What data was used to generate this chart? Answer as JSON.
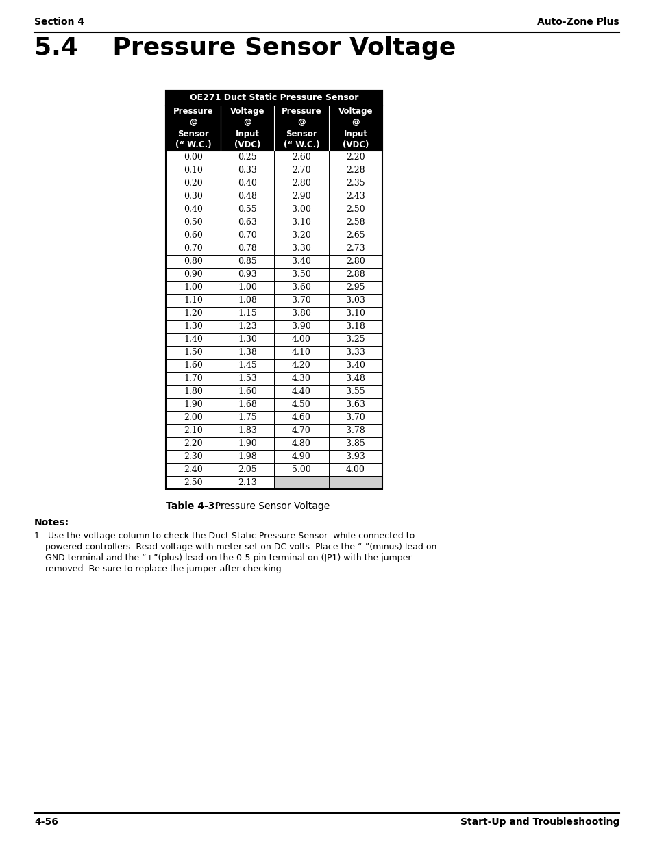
{
  "header_left": "Section 4",
  "header_right": "Auto-Zone Plus",
  "title": "5.4    Pressure Sensor Voltage",
  "table_title": "OE271 Duct Static Pressure Sensor",
  "col_headers": [
    "Pressure\n@\nSensor\n(“ W.C.)",
    "Voltage\n@\nInput\n(VDC)",
    "Pressure\n@\nSensor\n(“ W.C.)",
    "Voltage\n@\nInput\n(VDC)"
  ],
  "data_col1": [
    0.0,
    0.1,
    0.2,
    0.3,
    0.4,
    0.5,
    0.6,
    0.7,
    0.8,
    0.9,
    1.0,
    1.1,
    1.2,
    1.3,
    1.4,
    1.5,
    1.6,
    1.7,
    1.8,
    1.9,
    2.0,
    2.1,
    2.2,
    2.3,
    2.4,
    2.5
  ],
  "data_col2": [
    0.25,
    0.33,
    0.4,
    0.48,
    0.55,
    0.63,
    0.7,
    0.78,
    0.85,
    0.93,
    1.0,
    1.08,
    1.15,
    1.23,
    1.3,
    1.38,
    1.45,
    1.53,
    1.6,
    1.68,
    1.75,
    1.83,
    1.9,
    1.98,
    2.05,
    2.13
  ],
  "data_col3": [
    2.6,
    2.7,
    2.8,
    2.9,
    3.0,
    3.1,
    3.2,
    3.3,
    3.4,
    3.5,
    3.6,
    3.7,
    3.8,
    3.9,
    4.0,
    4.1,
    4.2,
    4.3,
    4.4,
    4.5,
    4.6,
    4.7,
    4.8,
    4.9,
    5.0,
    null
  ],
  "data_col4": [
    2.2,
    2.28,
    2.35,
    2.43,
    2.5,
    2.58,
    2.65,
    2.73,
    2.8,
    2.88,
    2.95,
    3.03,
    3.1,
    3.18,
    3.25,
    3.33,
    3.4,
    3.48,
    3.55,
    3.63,
    3.7,
    3.78,
    3.85,
    3.93,
    4.0,
    null
  ],
  "caption_bold": "Table 4-3:",
  "caption_normal": "  Pressure Sensor Voltage",
  "notes_bold": "Notes:",
  "note_line1": "1.  Use the voltage column to check the Duct Static Pressure Sensor  while connected to",
  "note_line2": "    powered controllers. Read voltage with meter set on DC volts. Place the “-”(minus) lead on",
  "note_line3": "    GND terminal and the “+”(plus) lead on the 0-5 pin terminal on (JP1) with the jumper",
  "note_line4": "    removed. Be sure to replace the jumper after checking.",
  "footer_left": "4-56",
  "footer_right": "Start-Up and Troubleshooting"
}
